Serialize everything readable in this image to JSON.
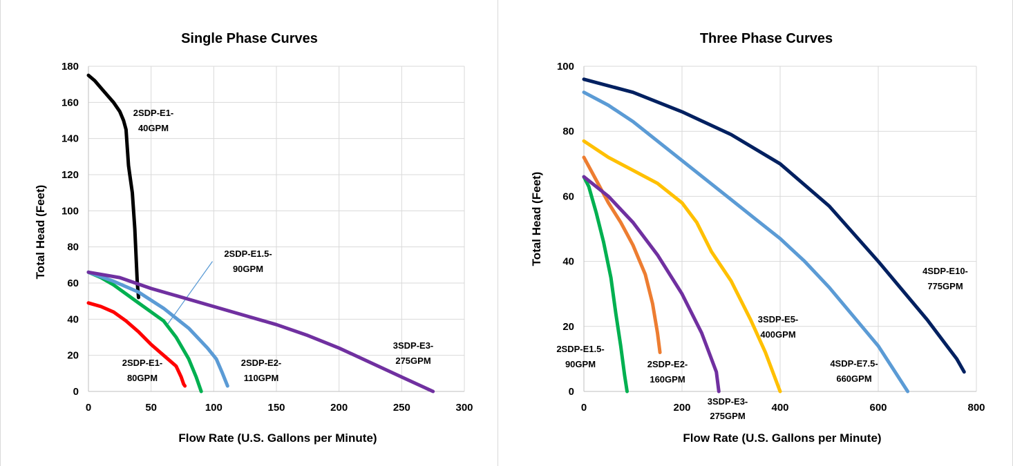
{
  "chart_data": [
    {
      "type": "line",
      "title": "Single Phase Curves",
      "xlabel": "Flow Rate (U.S. Gallons per Minute)",
      "ylabel": "Total Head (Feet)",
      "xlim": [
        0,
        300
      ],
      "ylim": [
        0,
        180
      ],
      "xticks": [
        0,
        50,
        100,
        150,
        200,
        250,
        300
      ],
      "yticks": [
        0,
        20,
        40,
        60,
        80,
        100,
        120,
        140,
        160,
        180
      ],
      "grid": true,
      "series": [
        {
          "name": "2SDP-E1-40GPM",
          "label_lines": [
            "2SDP-E1-",
            "40GPM"
          ],
          "color": "#000000",
          "points": [
            [
              0,
              175
            ],
            [
              5,
              172
            ],
            [
              10,
              168
            ],
            [
              15,
              164
            ],
            [
              20,
              160
            ],
            [
              25,
              155
            ],
            [
              28,
              150
            ],
            [
              30,
              145
            ],
            [
              31,
              135
            ],
            [
              32,
              125
            ],
            [
              33,
              120
            ],
            [
              35,
              110
            ],
            [
              37,
              90
            ],
            [
              38,
              75
            ],
            [
              39,
              60
            ],
            [
              40,
              52
            ]
          ]
        },
        {
          "name": "2SDP-E1-80GPM",
          "label_lines": [
            "2SDP-E1-",
            "80GPM"
          ],
          "color": "#ff0000",
          "points": [
            [
              0,
              49
            ],
            [
              10,
              47
            ],
            [
              20,
              44
            ],
            [
              30,
              39
            ],
            [
              40,
              33
            ],
            [
              50,
              26
            ],
            [
              60,
              20
            ],
            [
              70,
              14
            ],
            [
              74,
              8
            ],
            [
              76,
              4
            ],
            [
              77,
              3
            ]
          ]
        },
        {
          "name": "2SDP-E1.5-90GPM",
          "label_lines": [
            "2SDP-E1.5-",
            "90GPM"
          ],
          "color": "#00b050",
          "points": [
            [
              0,
              66
            ],
            [
              10,
              63
            ],
            [
              20,
              59
            ],
            [
              30,
              54
            ],
            [
              40,
              49
            ],
            [
              50,
              44
            ],
            [
              60,
              39
            ],
            [
              70,
              30
            ],
            [
              80,
              18
            ],
            [
              86,
              8
            ],
            [
              90,
              0
            ]
          ]
        },
        {
          "name": "2SDP-E2-110GPM",
          "label_lines": [
            "2SDP-E2-",
            "110GPM"
          ],
          "color": "#5b9bd5",
          "points": [
            [
              0,
              66
            ],
            [
              20,
              61
            ],
            [
              40,
              55
            ],
            [
              60,
              46
            ],
            [
              80,
              35
            ],
            [
              95,
              24
            ],
            [
              102,
              18
            ],
            [
              107,
              10
            ],
            [
              111,
              3
            ]
          ]
        },
        {
          "name": "3SDP-E3-275GPM",
          "label_lines": [
            "3SDP-E3-",
            "275GPM"
          ],
          "color": "#7030a0",
          "points": [
            [
              0,
              66
            ],
            [
              25,
              63
            ],
            [
              50,
              57
            ],
            [
              75,
              52
            ],
            [
              100,
              47
            ],
            [
              125,
              42
            ],
            [
              150,
              37
            ],
            [
              175,
              31
            ],
            [
              200,
              24
            ],
            [
              225,
              16
            ],
            [
              250,
              8
            ],
            [
              275,
              0
            ]
          ]
        }
      ],
      "callouts": [
        {
          "series": "2SDP-E1.5-90GPM",
          "from": [
            63,
            37
          ],
          "to": [
            99,
            72
          ]
        }
      ]
    },
    {
      "type": "line",
      "title": "Three Phase Curves",
      "xlabel": "Flow Rate (U.S. Gallons per Minute)",
      "ylabel": "Total Head (Feet)",
      "xlim": [
        0,
        800
      ],
      "ylim": [
        0,
        100
      ],
      "xticks": [
        0,
        200,
        400,
        600,
        800
      ],
      "yticks": [
        0,
        20,
        40,
        60,
        80,
        100
      ],
      "grid": true,
      "series": [
        {
          "name": "2SDP-E1.5-90GPM",
          "label_lines": [
            "2SDP-E1.5-",
            "90GPM"
          ],
          "color": "#00b050",
          "points": [
            [
              0,
              66
            ],
            [
              10,
              63
            ],
            [
              25,
              55
            ],
            [
              40,
              46
            ],
            [
              55,
              35
            ],
            [
              65,
              24
            ],
            [
              75,
              14
            ],
            [
              83,
              5
            ],
            [
              88,
              0
            ]
          ]
        },
        {
          "name": "2SDP-E2-160GPM",
          "label_lines": [
            "2SDP-E2-",
            "160GPM"
          ],
          "color": "#ed7d31",
          "points": [
            [
              0,
              72
            ],
            [
              25,
              65
            ],
            [
              50,
              58
            ],
            [
              75,
              52
            ],
            [
              100,
              45
            ],
            [
              125,
              36
            ],
            [
              140,
              27
            ],
            [
              150,
              18
            ],
            [
              155,
              12
            ]
          ]
        },
        {
          "name": "3SDP-E3-275GPM",
          "label_lines": [
            "3SDP-E3-",
            "275GPM"
          ],
          "color": "#7030a0",
          "points": [
            [
              0,
              66
            ],
            [
              50,
              60
            ],
            [
              100,
              52
            ],
            [
              150,
              42
            ],
            [
              200,
              30
            ],
            [
              240,
              18
            ],
            [
              270,
              6
            ],
            [
              275,
              0
            ]
          ]
        },
        {
          "name": "3SDP-E5-400GPM",
          "label_lines": [
            "3SDP-E5-",
            "400GPM"
          ],
          "color": "#ffc000",
          "points": [
            [
              0,
              77
            ],
            [
              50,
              72
            ],
            [
              100,
              68
            ],
            [
              150,
              64
            ],
            [
              200,
              58
            ],
            [
              230,
              52
            ],
            [
              260,
              43
            ],
            [
              300,
              34
            ],
            [
              340,
              22
            ],
            [
              370,
              12
            ],
            [
              400,
              0
            ]
          ]
        },
        {
          "name": "4SDP-E7.5-660GPM",
          "label_lines": [
            "4SDP-E7.5-",
            "660GPM"
          ],
          "color": "#5b9bd5",
          "points": [
            [
              0,
              92
            ],
            [
              50,
              88
            ],
            [
              100,
              83
            ],
            [
              150,
              77
            ],
            [
              200,
              71
            ],
            [
              250,
              65
            ],
            [
              300,
              59
            ],
            [
              350,
              53
            ],
            [
              400,
              47
            ],
            [
              450,
              40
            ],
            [
              500,
              32
            ],
            [
              550,
              23
            ],
            [
              600,
              14
            ],
            [
              630,
              7
            ],
            [
              660,
              0
            ]
          ]
        },
        {
          "name": "4SDP-E10-775GPM",
          "label_lines": [
            "4SDP-E10-",
            "775GPM"
          ],
          "color": "#002060",
          "points": [
            [
              0,
              96
            ],
            [
              100,
              92
            ],
            [
              200,
              86
            ],
            [
              300,
              79
            ],
            [
              400,
              70
            ],
            [
              500,
              57
            ],
            [
              600,
              40
            ],
            [
              650,
              31
            ],
            [
              700,
              22
            ],
            [
              740,
              14
            ],
            [
              760,
              10
            ],
            [
              775,
              6
            ]
          ]
        }
      ]
    }
  ]
}
